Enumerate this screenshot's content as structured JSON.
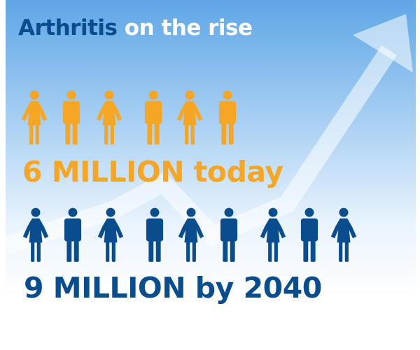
{
  "headline": {
    "keyword": "Arthritis",
    "rest": "on the rise"
  },
  "today": {
    "label": "6 MILLION today",
    "color": "#f4a624",
    "figures": [
      "woman",
      "man",
      "woman",
      "man",
      "woman",
      "man"
    ]
  },
  "future": {
    "label": "9 MILLION by 2040",
    "color": "#0a4d8f",
    "figures": [
      "woman",
      "man",
      "woman",
      "man",
      "woman",
      "man",
      "woman",
      "man",
      "woman"
    ]
  },
  "colors": {
    "background_top": "#5ea6e6",
    "arrow": "#ffffff"
  }
}
